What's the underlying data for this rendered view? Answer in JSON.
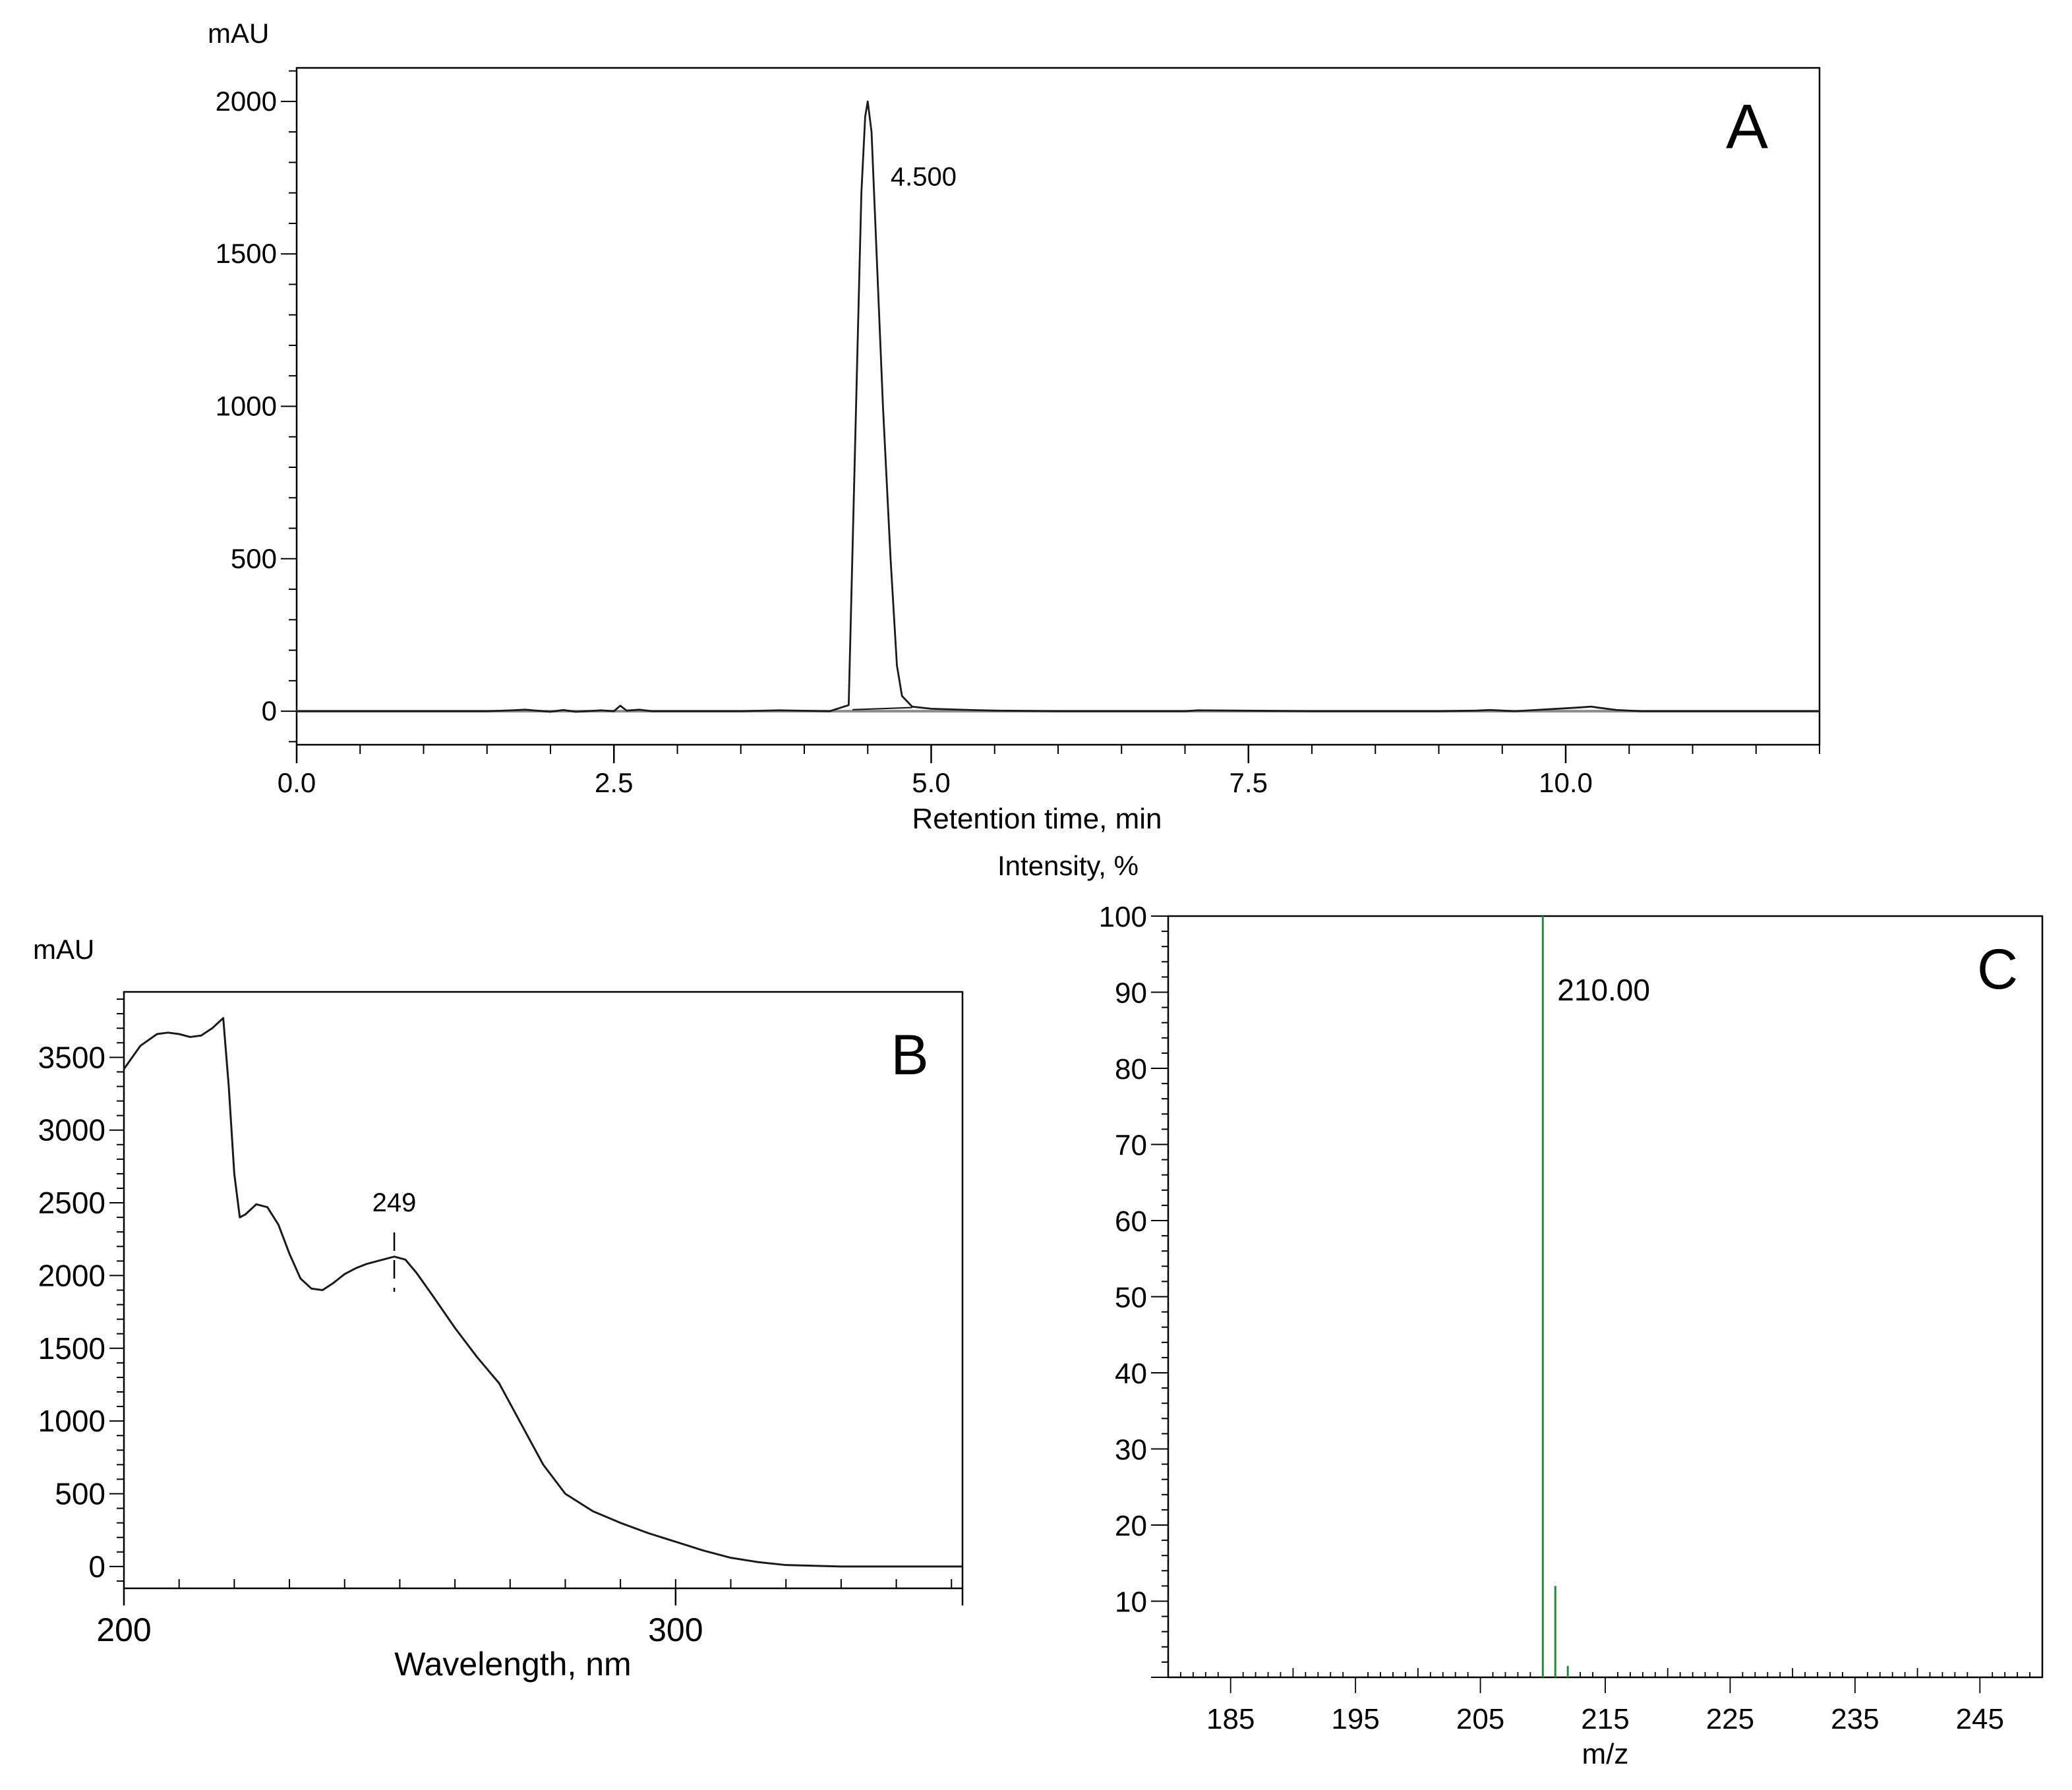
{
  "chart_data": [
    {
      "panel": "A",
      "type": "line",
      "title": "",
      "xlabel": "Retention time, min",
      "ylabel": "mAU",
      "xlim": [
        0,
        12.0
      ],
      "ylim": [
        -110,
        2110
      ],
      "x_ticks": [
        0.0,
        2.5,
        5.0,
        7.5,
        10.0
      ],
      "x_tick_labels": [
        "0.0",
        "2.5",
        "5.0",
        "7.5",
        "10.0"
      ],
      "y_ticks": [
        0,
        500,
        1000,
        1500,
        2000
      ],
      "y_tick_labels": [
        "0",
        "500",
        "1000",
        "1500",
        "2000"
      ],
      "peak_label": "4.500",
      "peak_label_at": [
        4.55,
        1750
      ],
      "series": [
        {
          "name": "chromatogram",
          "x": [
            0,
            1.5,
            1.7,
            1.8,
            2.0,
            2.1,
            2.2,
            2.4,
            2.5,
            2.55,
            2.6,
            2.7,
            2.8,
            3.5,
            3.8,
            4.2,
            4.35,
            4.42,
            4.45,
            4.48,
            4.5,
            4.53,
            4.57,
            4.62,
            4.68,
            4.73,
            4.77,
            4.85,
            5.0,
            5.3,
            5.5,
            6.0,
            7.0,
            7.1,
            8.0,
            9.0,
            9.3,
            9.4,
            9.6,
            10.1,
            10.2,
            10.25,
            10.4,
            10.6,
            12.0
          ],
          "y": [
            0,
            0,
            3,
            5,
            -2,
            4,
            -2,
            3,
            0,
            18,
            2,
            5,
            0,
            0,
            3,
            0,
            20,
            1200,
            1700,
            1950,
            2000,
            1900,
            1500,
            1000,
            500,
            150,
            50,
            15,
            8,
            4,
            2,
            0,
            0,
            3,
            0,
            0,
            2,
            4,
            0,
            12,
            15,
            12,
            4,
            0,
            0
          ]
        },
        {
          "name": "integration baseline",
          "x": [
            4.38,
            4.85
          ],
          "y": [
            5,
            12
          ]
        }
      ]
    },
    {
      "panel": "B",
      "type": "line",
      "title": "",
      "xlabel": "Wavelength, nm",
      "ylabel": "mAU",
      "xlim": [
        200,
        352
      ],
      "ylim": [
        -150,
        3950
      ],
      "x_ticks": [
        200,
        300
      ],
      "x_tick_labels": [
        "200",
        "300"
      ],
      "y_ticks": [
        0,
        500,
        1000,
        1500,
        2000,
        2500,
        3000,
        3500
      ],
      "y_tick_labels": [
        "0",
        "500",
        "1000",
        "1500",
        "2000",
        "2500",
        "3000",
        "3500"
      ],
      "peak_label": "249",
      "peak_label_at": [
        249,
        2130
      ],
      "series": [
        {
          "name": "UV spectrum",
          "x": [
            200,
            203,
            206,
            208,
            210,
            212,
            214,
            216,
            218,
            219,
            220,
            221,
            222,
            224,
            226,
            228,
            230,
            232,
            234,
            236,
            238,
            240,
            242,
            244,
            246,
            249,
            251,
            253,
            256,
            260,
            264,
            268,
            272,
            276,
            280,
            285,
            290,
            295,
            300,
            305,
            310,
            315,
            320,
            325,
            330,
            340,
            352
          ],
          "y": [
            3420,
            3580,
            3660,
            3670,
            3660,
            3640,
            3650,
            3700,
            3770,
            3300,
            2700,
            2400,
            2420,
            2490,
            2470,
            2350,
            2150,
            1980,
            1910,
            1900,
            1950,
            2010,
            2050,
            2080,
            2100,
            2130,
            2110,
            2020,
            1860,
            1640,
            1440,
            1260,
            980,
            700,
            500,
            380,
            300,
            230,
            170,
            110,
            60,
            30,
            10,
            5,
            0,
            0,
            0
          ]
        }
      ]
    },
    {
      "panel": "C",
      "type": "bar",
      "title": "",
      "xlabel": "m/z",
      "ylabel": "Intensity, %",
      "xlim": [
        180,
        250
      ],
      "ylim": [
        0,
        100
      ],
      "x_ticks": [
        185,
        195,
        205,
        215,
        225,
        235,
        245
      ],
      "x_tick_labels": [
        "185",
        "195",
        "205",
        "215",
        "225",
        "235",
        "245"
      ],
      "y_ticks": [
        10,
        20,
        30,
        40,
        50,
        60,
        70,
        80,
        90,
        100
      ],
      "y_tick_labels": [
        "10",
        "20",
        "30",
        "40",
        "50",
        "60",
        "70",
        "80",
        "90",
        "100"
      ],
      "peak_label": "210.00",
      "peak_label_at": [
        211,
        90
      ],
      "x": [
        210.0,
        211.0,
        212.0
      ],
      "values": [
        100,
        12,
        1.5
      ]
    }
  ],
  "panel_letters": [
    "A",
    "B",
    "C"
  ],
  "colors": {
    "trace": "#1a1a1a",
    "axis": "#000000",
    "baseline": "#8c8c8c",
    "ms_bar": "#238b3a",
    "background": "#ffffff"
  }
}
